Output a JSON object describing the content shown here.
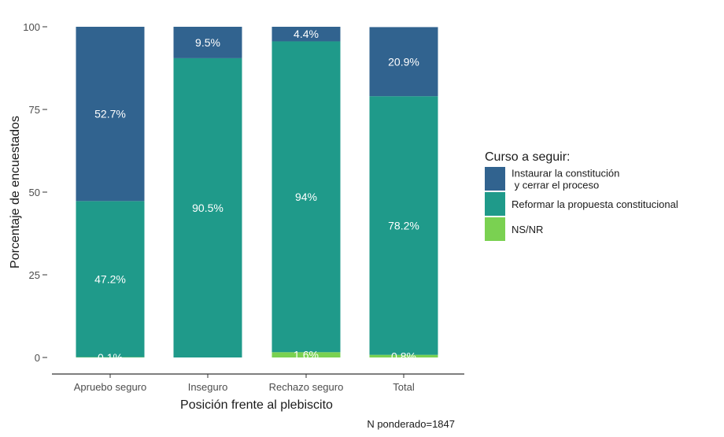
{
  "chart_data": {
    "type": "bar",
    "stacked": true,
    "categories": [
      "Apruebo seguro",
      "Inseguro",
      "Rechazo seguro",
      "Total"
    ],
    "series": [
      {
        "name": "NS/NR",
        "color": "#7ad151",
        "values": [
          0.1,
          0,
          1.6,
          0.8
        ],
        "labels": [
          "0.1%",
          "",
          "1.6%",
          "0.8%"
        ]
      },
      {
        "name": "Reformar la propuesta constitucional",
        "color": "#1f9a8a",
        "values": [
          47.2,
          90.5,
          94,
          78.2
        ],
        "labels": [
          "47.2%",
          "90.5%",
          "94%",
          "78.2%"
        ]
      },
      {
        "name": "Instaurar la constitución\n y cerrar el proceso",
        "color": "#31638f",
        "values": [
          52.7,
          9.5,
          4.4,
          20.9
        ],
        "labels": [
          "52.7%",
          "9.5%",
          "4.4%",
          "20.9%"
        ]
      }
    ],
    "legend_order": [
      2,
      1,
      0
    ],
    "xlabel": "Posición frente al plebiscito",
    "ylabel": "Porcentaje de encuestados",
    "ylim": [
      0,
      100
    ],
    "yticks": [
      0,
      25,
      50,
      75,
      100
    ],
    "legend_title": "Curso a seguir:",
    "legend_position": "right",
    "caption": "N ponderado=1847",
    "grid": false
  }
}
